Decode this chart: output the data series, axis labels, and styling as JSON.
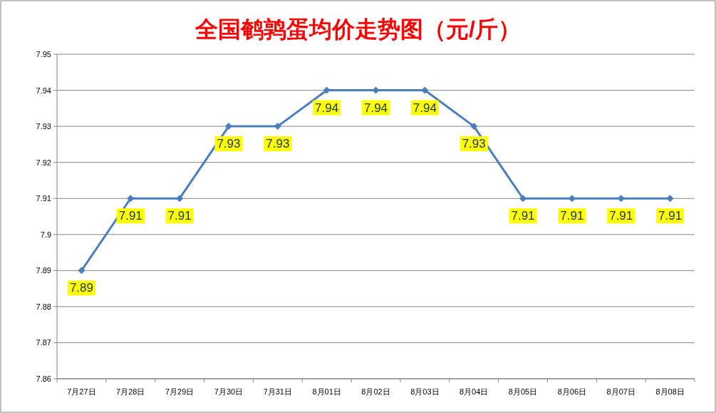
{
  "chart_data": {
    "type": "line",
    "title": "全国鹌鹑蛋均价走势图（元/斤）",
    "categories": [
      "7月27日",
      "7月28日",
      "7月29日",
      "7月30日",
      "7月31日",
      "8月01日",
      "8月02日",
      "8月03日",
      "8月04日",
      "8月05日",
      "8月06日",
      "8月07日",
      "8月08日"
    ],
    "series": [
      {
        "color": "#4a7ebb",
        "values": [
          7.89,
          7.91,
          7.91,
          7.93,
          7.93,
          7.94,
          7.94,
          7.94,
          7.93,
          7.91,
          7.91,
          7.91,
          7.91
        ]
      }
    ],
    "ylim": [
      7.86,
      7.95
    ],
    "yticks": [
      7.86,
      7.87,
      7.88,
      7.89,
      7.9,
      7.91,
      7.92,
      7.93,
      7.94,
      7.95
    ],
    "grid": "y",
    "marker": "diamond",
    "line_style": "solid",
    "data_labels": true
  }
}
